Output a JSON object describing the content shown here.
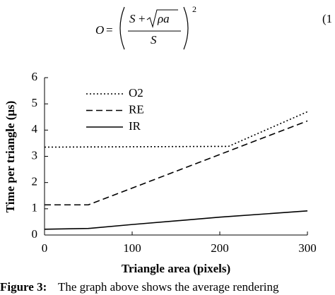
{
  "equation": {
    "parts": [
      "O",
      "=",
      "S",
      "+",
      "ρa",
      "S",
      "2"
    ],
    "number": "(1"
  },
  "chart_data": {
    "type": "line",
    "xlabel": "Triangle area (pixels)",
    "ylabel": "Time per triangle (μs)",
    "xlim": [
      0,
      300
    ],
    "xticks": [
      0,
      100,
      200,
      300
    ],
    "ylim": [
      0,
      6
    ],
    "yticks": [
      0,
      1,
      2,
      3,
      4,
      5,
      6
    ],
    "legend": "upper-left",
    "series": [
      {
        "name": "O2",
        "color": "#000000",
        "dash": "dotted",
        "x": [
          0,
          210,
          300
        ],
        "values": [
          3.35,
          3.38,
          4.7
        ]
      },
      {
        "name": "RE",
        "color": "#000000",
        "dash": "dashed",
        "x": [
          0,
          50,
          300
        ],
        "values": [
          1.15,
          1.15,
          4.35
        ]
      },
      {
        "name": "IR",
        "color": "#000000",
        "dash": "solid",
        "x": [
          0,
          50,
          100,
          200,
          300
        ],
        "values": [
          0.22,
          0.25,
          0.4,
          0.68,
          0.92
        ]
      }
    ]
  },
  "caption": {
    "label": "Figure 3:",
    "text": "The graph above shows the average rendering"
  }
}
